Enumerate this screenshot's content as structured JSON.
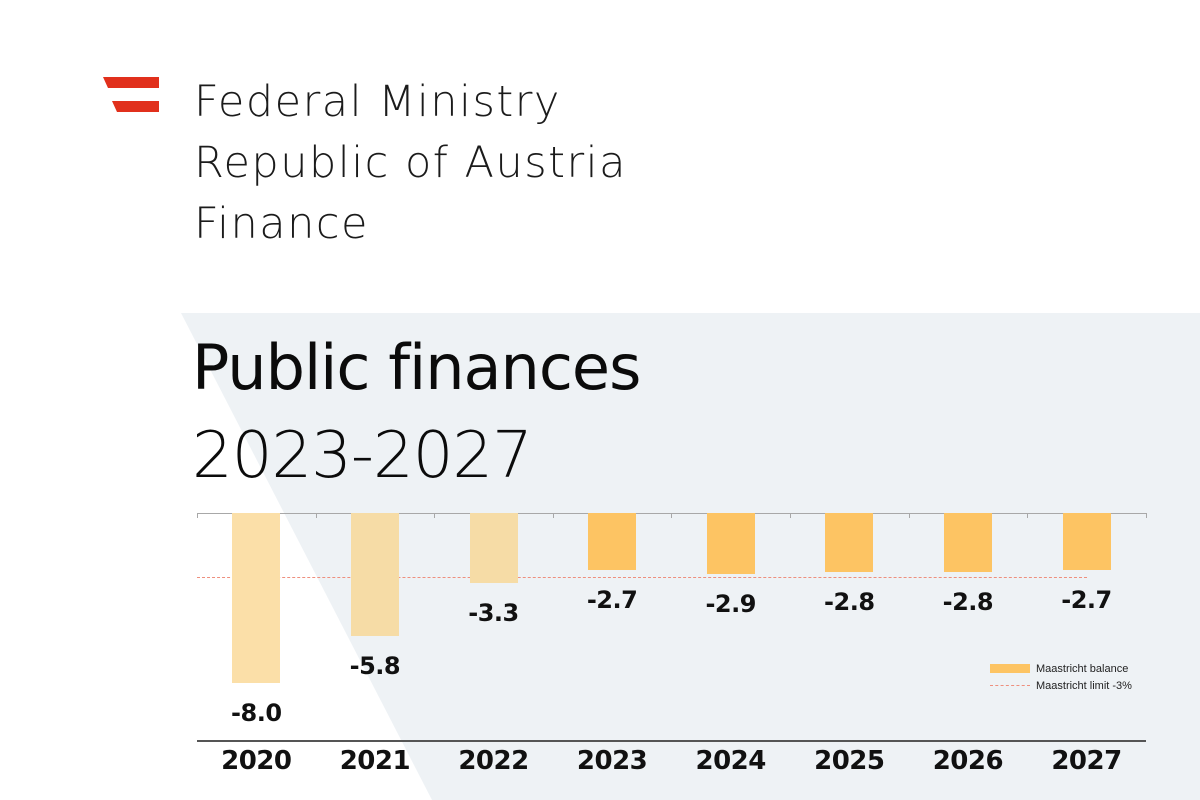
{
  "header": {
    "org_lines": [
      "Federal Ministry",
      "Republic of Austria",
      "Finance"
    ],
    "logo_color": "#E1301C"
  },
  "title": {
    "main": "Public finances",
    "sub": "2023-2027"
  },
  "colors": {
    "panel_bg": "#EEF2F5",
    "bar_historic": "#FBDFA8",
    "bar_historic_alt": "#F6DCA6",
    "bar_forecast": "#FDC463",
    "limit_line": "#EE8F7E",
    "axis": "#555555"
  },
  "legend": {
    "items": [
      {
        "label": "Maastricht balance",
        "type": "bar"
      },
      {
        "label": "Maastricht limit -3%",
        "type": "dashed-line"
      }
    ]
  },
  "chart_data": {
    "type": "bar",
    "title": "Public finances 2023-2027",
    "xlabel": "",
    "ylabel": "",
    "categories": [
      "2020",
      "2021",
      "2022",
      "2023",
      "2024",
      "2025",
      "2026",
      "2027"
    ],
    "series": [
      {
        "name": "Maastricht balance",
        "values": [
          -8.0,
          -5.8,
          -3.3,
          -2.7,
          -2.9,
          -2.8,
          -2.8,
          -2.7
        ]
      }
    ],
    "value_labels": [
      "-8.0",
      "-5.8",
      "-3.3",
      "-2.7",
      "-2.9",
      "-2.8",
      "-2.8",
      "-2.7"
    ],
    "reference_lines": [
      {
        "name": "Maastricht limit -3%",
        "value": -3.0,
        "style": "dashed"
      }
    ],
    "historic_categories": [
      "2020",
      "2021",
      "2022"
    ],
    "forecast_categories": [
      "2023",
      "2024",
      "2025",
      "2026",
      "2027"
    ],
    "ylim": [
      -10.7,
      0
    ],
    "grid": false,
    "legend_position": "lower right"
  }
}
